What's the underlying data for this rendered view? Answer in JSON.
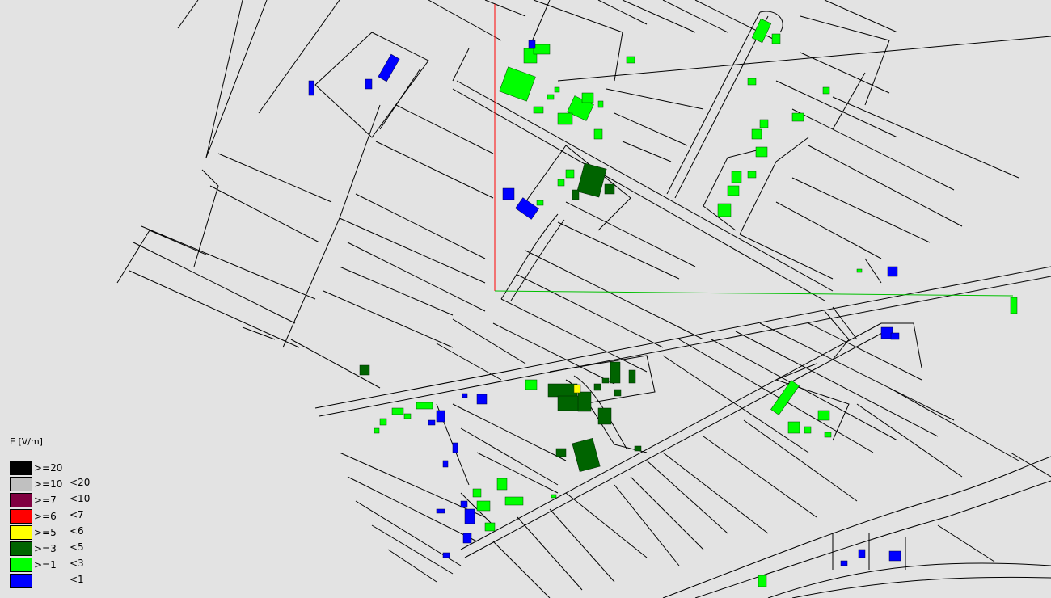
{
  "legend": {
    "title": "E [V/m]",
    "items": [
      {
        "low": ">=20",
        "high": "",
        "color": "#000000"
      },
      {
        "low": ">=10",
        "high": "<20",
        "color": "#c0c0c0"
      },
      {
        "low": ">=7",
        "high": "<10",
        "color": "#800040"
      },
      {
        "low": ">=6",
        "high": "<7",
        "color": "#ff0000"
      },
      {
        "low": ">=5",
        "high": "<6",
        "color": "#ffff00"
      },
      {
        "low": ">=3",
        "high": "<5",
        "color": "#006400"
      },
      {
        "low": ">=1",
        "high": "<3",
        "color": "#00ff00"
      },
      {
        "low": "",
        "high": "<1",
        "color": "#0000ff"
      }
    ]
  },
  "colors": {
    "background": "#e3e3e3",
    "road": "#000000",
    "red_line": "#ff0000",
    "green_line": "#00c000"
  }
}
